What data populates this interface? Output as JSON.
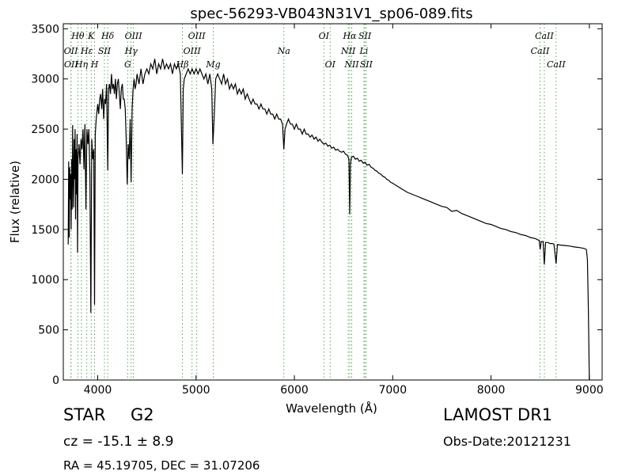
{
  "chart_data": {
    "type": "line",
    "title": "spec-56293-VB043N31V1_sp06-089.fits",
    "xlabel": "Wavelength (Å)",
    "ylabel": "Flux (relative)",
    "xlim": [
      3650,
      9130
    ],
    "ylim": [
      0,
      3550
    ],
    "xticks": [
      4000,
      5000,
      6000,
      7000,
      8000,
      9000
    ],
    "yticks": [
      0,
      500,
      1000,
      1500,
      2000,
      2500,
      3000,
      3500
    ],
    "grid": false,
    "line_color": "#000000",
    "marker_color": "#55aa55",
    "series": [
      {
        "values": [
          [
            3700,
            1350
          ],
          [
            3705,
            2180
          ],
          [
            3710,
            1420
          ],
          [
            3715,
            2120
          ],
          [
            3720,
            1800
          ],
          [
            3725,
            2050
          ],
          [
            3730,
            1500
          ],
          [
            3735,
            2200
          ],
          [
            3740,
            1700
          ],
          [
            3745,
            2540
          ],
          [
            3750,
            2050
          ],
          [
            3755,
            1720
          ],
          [
            3760,
            2400
          ],
          [
            3765,
            2000
          ],
          [
            3770,
            2500
          ],
          [
            3775,
            1600
          ],
          [
            3780,
            2300
          ],
          [
            3785,
            1850
          ],
          [
            3790,
            2450
          ],
          [
            3795,
            1270
          ],
          [
            3800,
            2200
          ],
          [
            3810,
            2350
          ],
          [
            3820,
            2150
          ],
          [
            3830,
            2400
          ],
          [
            3840,
            2300
          ],
          [
            3850,
            2500
          ],
          [
            3860,
            2100
          ],
          [
            3870,
            2550
          ],
          [
            3880,
            1700
          ],
          [
            3890,
            2500
          ],
          [
            3900,
            2350
          ],
          [
            3910,
            2500
          ],
          [
            3920,
            2050
          ],
          [
            3930,
            670
          ],
          [
            3940,
            2400
          ],
          [
            3950,
            2200
          ],
          [
            3960,
            2300
          ],
          [
            3968,
            750
          ],
          [
            3975,
            2450
          ],
          [
            3985,
            2600
          ],
          [
            4000,
            2750
          ],
          [
            4010,
            2650
          ],
          [
            4020,
            2800
          ],
          [
            4030,
            2850
          ],
          [
            4040,
            2700
          ],
          [
            4050,
            2900
          ],
          [
            4060,
            2600
          ],
          [
            4070,
            2800
          ],
          [
            4080,
            2750
          ],
          [
            4090,
            2950
          ],
          [
            4102,
            2090
          ],
          [
            4110,
            2900
          ],
          [
            4120,
            2950
          ],
          [
            4130,
            2850
          ],
          [
            4140,
            3050
          ],
          [
            4150,
            2900
          ],
          [
            4160,
            2950
          ],
          [
            4170,
            2850
          ],
          [
            4180,
            3000
          ],
          [
            4190,
            2800
          ],
          [
            4200,
            2950
          ],
          [
            4210,
            3000
          ],
          [
            4220,
            2850
          ],
          [
            4230,
            2700
          ],
          [
            4240,
            2900
          ],
          [
            4250,
            2950
          ],
          [
            4260,
            2800
          ],
          [
            4270,
            2800
          ],
          [
            4280,
            2700
          ],
          [
            4290,
            2400
          ],
          [
            4300,
            1950
          ],
          [
            4310,
            2350
          ],
          [
            4320,
            2200
          ],
          [
            4330,
            2600
          ],
          [
            4340,
            1970
          ],
          [
            4350,
            2700
          ],
          [
            4360,
            2900
          ],
          [
            4370,
            3000
          ],
          [
            4380,
            2900
          ],
          [
            4390,
            2950
          ],
          [
            4400,
            3050
          ],
          [
            4420,
            2950
          ],
          [
            4440,
            3100
          ],
          [
            4460,
            2950
          ],
          [
            4480,
            3050
          ],
          [
            4500,
            3100
          ],
          [
            4520,
            3050
          ],
          [
            4540,
            3150
          ],
          [
            4560,
            3100
          ],
          [
            4580,
            3200
          ],
          [
            4600,
            3050
          ],
          [
            4620,
            3150
          ],
          [
            4640,
            3100
          ],
          [
            4660,
            3200
          ],
          [
            4680,
            3100
          ],
          [
            4700,
            3150
          ],
          [
            4720,
            3100
          ],
          [
            4740,
            3150
          ],
          [
            4760,
            3050
          ],
          [
            4780,
            3150
          ],
          [
            4800,
            3100
          ],
          [
            4820,
            3150
          ],
          [
            4840,
            3050
          ],
          [
            4861,
            2050
          ],
          [
            4870,
            2900
          ],
          [
            4880,
            3000
          ],
          [
            4900,
            3050
          ],
          [
            4920,
            3100
          ],
          [
            4940,
            3050
          ],
          [
            4960,
            3100
          ],
          [
            4980,
            3050
          ],
          [
            5000,
            3100
          ],
          [
            5020,
            3050
          ],
          [
            5040,
            3100
          ],
          [
            5060,
            3050
          ],
          [
            5080,
            3000
          ],
          [
            5100,
            3050
          ],
          [
            5120,
            2950
          ],
          [
            5140,
            3050
          ],
          [
            5160,
            2900
          ],
          [
            5172,
            2350
          ],
          [
            5184,
            2600
          ],
          [
            5200,
            3000
          ],
          [
            5220,
            3050
          ],
          [
            5240,
            3000
          ],
          [
            5260,
            2950
          ],
          [
            5280,
            3050
          ],
          [
            5300,
            2950
          ],
          [
            5320,
            3000
          ],
          [
            5340,
            2900
          ],
          [
            5360,
            2950
          ],
          [
            5380,
            2900
          ],
          [
            5400,
            2950
          ],
          [
            5420,
            2850
          ],
          [
            5440,
            2900
          ],
          [
            5460,
            2850
          ],
          [
            5480,
            2900
          ],
          [
            5500,
            2800
          ],
          [
            5520,
            2850
          ],
          [
            5540,
            2800
          ],
          [
            5560,
            2750
          ],
          [
            5580,
            2800
          ],
          [
            5600,
            2750
          ],
          [
            5620,
            2750
          ],
          [
            5640,
            2700
          ],
          [
            5660,
            2750
          ],
          [
            5680,
            2700
          ],
          [
            5700,
            2700
          ],
          [
            5720,
            2650
          ],
          [
            5740,
            2700
          ],
          [
            5760,
            2650
          ],
          [
            5780,
            2650
          ],
          [
            5800,
            2600
          ],
          [
            5820,
            2650
          ],
          [
            5840,
            2600
          ],
          [
            5860,
            2600
          ],
          [
            5880,
            2550
          ],
          [
            5893,
            2300
          ],
          [
            5905,
            2500
          ],
          [
            5920,
            2550
          ],
          [
            5940,
            2600
          ],
          [
            5960,
            2550
          ],
          [
            5980,
            2550
          ],
          [
            6000,
            2500
          ],
          [
            6020,
            2550
          ],
          [
            6040,
            2500
          ],
          [
            6060,
            2500
          ],
          [
            6080,
            2450
          ],
          [
            6100,
            2500
          ],
          [
            6120,
            2450
          ],
          [
            6140,
            2450
          ],
          [
            6160,
            2420
          ],
          [
            6180,
            2440
          ],
          [
            6200,
            2400
          ],
          [
            6220,
            2420
          ],
          [
            6240,
            2380
          ],
          [
            6260,
            2400
          ],
          [
            6280,
            2370
          ],
          [
            6300,
            2350
          ],
          [
            6320,
            2360
          ],
          [
            6340,
            2330
          ],
          [
            6360,
            2340
          ],
          [
            6380,
            2310
          ],
          [
            6400,
            2320
          ],
          [
            6420,
            2290
          ],
          [
            6440,
            2300
          ],
          [
            6460,
            2280
          ],
          [
            6480,
            2270
          ],
          [
            6500,
            2280
          ],
          [
            6520,
            2250
          ],
          [
            6540,
            2240
          ],
          [
            6555,
            2200
          ],
          [
            6563,
            1650
          ],
          [
            6570,
            2150
          ],
          [
            6580,
            2220
          ],
          [
            6600,
            2230
          ],
          [
            6620,
            2200
          ],
          [
            6640,
            2210
          ],
          [
            6660,
            2180
          ],
          [
            6680,
            2190
          ],
          [
            6700,
            2160
          ],
          [
            6720,
            2170
          ],
          [
            6740,
            2140
          ],
          [
            6760,
            2150
          ],
          [
            6780,
            2120
          ],
          [
            6800,
            2110
          ],
          [
            6820,
            2090
          ],
          [
            6840,
            2080
          ],
          [
            6860,
            2060
          ],
          [
            6880,
            2050
          ],
          [
            6900,
            2030
          ],
          [
            6920,
            2020
          ],
          [
            6940,
            2000
          ],
          [
            6960,
            1990
          ],
          [
            6980,
            1970
          ],
          [
            7000,
            1960
          ],
          [
            7050,
            1930
          ],
          [
            7100,
            1900
          ],
          [
            7150,
            1870
          ],
          [
            7200,
            1850
          ],
          [
            7250,
            1830
          ],
          [
            7300,
            1810
          ],
          [
            7350,
            1790
          ],
          [
            7400,
            1770
          ],
          [
            7450,
            1750
          ],
          [
            7500,
            1730
          ],
          [
            7550,
            1720
          ],
          [
            7600,
            1680
          ],
          [
            7650,
            1690
          ],
          [
            7700,
            1660
          ],
          [
            7750,
            1640
          ],
          [
            7800,
            1620
          ],
          [
            7850,
            1600
          ],
          [
            7900,
            1580
          ],
          [
            7950,
            1560
          ],
          [
            8000,
            1550
          ],
          [
            8050,
            1530
          ],
          [
            8100,
            1510
          ],
          [
            8150,
            1500
          ],
          [
            8200,
            1480
          ],
          [
            8250,
            1470
          ],
          [
            8300,
            1450
          ],
          [
            8350,
            1440
          ],
          [
            8400,
            1420
          ],
          [
            8450,
            1410
          ],
          [
            8490,
            1390
          ],
          [
            8500,
            1300
          ],
          [
            8510,
            1380
          ],
          [
            8530,
            1380
          ],
          [
            8542,
            1150
          ],
          [
            8555,
            1370
          ],
          [
            8580,
            1370
          ],
          [
            8600,
            1360
          ],
          [
            8620,
            1360
          ],
          [
            8640,
            1355
          ],
          [
            8662,
            1160
          ],
          [
            8675,
            1350
          ],
          [
            8700,
            1345
          ],
          [
            8750,
            1340
          ],
          [
            8800,
            1335
          ],
          [
            8850,
            1325
          ],
          [
            8900,
            1320
          ],
          [
            8950,
            1310
          ],
          [
            8970,
            1300
          ],
          [
            8980,
            1200
          ],
          [
            8990,
            700
          ],
          [
            9000,
            0
          ]
        ]
      }
    ],
    "spectral_lines": [
      {
        "label": "Hθ",
        "wavelength": 3798,
        "row": 1
      },
      {
        "label": "K",
        "wavelength": 3934,
        "row": 1
      },
      {
        "label": "Hδ",
        "wavelength": 4102,
        "row": 1
      },
      {
        "label": "OIII",
        "wavelength": 4363,
        "row": 1
      },
      {
        "label": "OIII",
        "wavelength": 5007,
        "row": 1
      },
      {
        "label": "OI",
        "wavelength": 6300,
        "row": 1
      },
      {
        "label": "Hα",
        "wavelength": 6563,
        "row": 1
      },
      {
        "label": "SII",
        "wavelength": 6717,
        "row": 1
      },
      {
        "label": "CaII",
        "wavelength": 8542,
        "row": 1
      },
      {
        "label": "OII",
        "wavelength": 3727,
        "row": 2
      },
      {
        "label": "Hε",
        "wavelength": 3889,
        "row": 2
      },
      {
        "label": "SII",
        "wavelength": 4068,
        "row": 2
      },
      {
        "label": "Hγ",
        "wavelength": 4340,
        "row": 2
      },
      {
        "label": "OIII",
        "wavelength": 4959,
        "row": 2
      },
      {
        "label": "Na",
        "wavelength": 5893,
        "row": 2
      },
      {
        "label": "NII",
        "wavelength": 6548,
        "row": 2
      },
      {
        "label": "Li",
        "wavelength": 6707,
        "row": 2
      },
      {
        "label": "CaII",
        "wavelength": 8498,
        "row": 2
      },
      {
        "label": "OII",
        "wavelength": 3729,
        "row": 3
      },
      {
        "label": "Hη",
        "wavelength": 3835,
        "row": 3
      },
      {
        "label": "H",
        "wavelength": 3968,
        "row": 3
      },
      {
        "label": "G",
        "wavelength": 4305,
        "row": 3
      },
      {
        "label": "Hβ",
        "wavelength": 4861,
        "row": 3
      },
      {
        "label": "Mg",
        "wavelength": 5175,
        "row": 3
      },
      {
        "label": "OI",
        "wavelength": 6364,
        "row": 3
      },
      {
        "label": "NII",
        "wavelength": 6583,
        "row": 3
      },
      {
        "label": "SII",
        "wavelength": 6731,
        "row": 3
      },
      {
        "label": "CaII",
        "wavelength": 8662,
        "row": 3
      }
    ]
  },
  "info": {
    "object_class": "STAR",
    "object_subclass": "G2",
    "cz": "cz = -15.1 ± 8.9",
    "radec": "RA = 45.19705, DEC = 31.07206",
    "survey": "LAMOST DR1",
    "obs_date": "Obs-Date:20121231"
  }
}
